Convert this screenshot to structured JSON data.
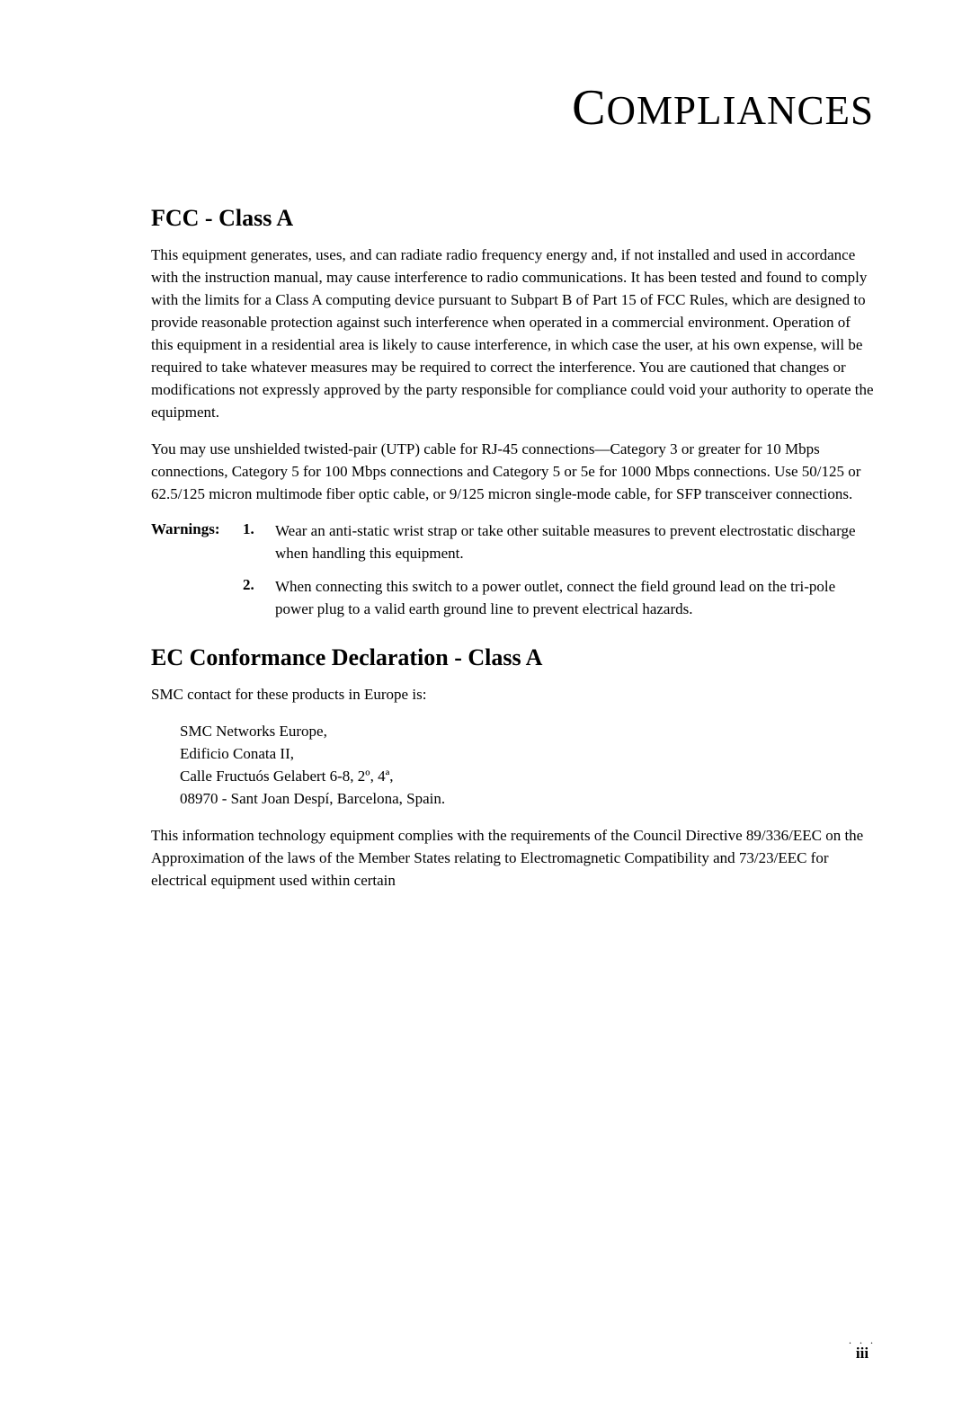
{
  "title": "OMPLIANCES",
  "title_first_letter": "C",
  "section1": {
    "heading": "FCC - Class A",
    "para1": "This equipment generates, uses, and can radiate radio frequency energy and, if not installed and used in accordance with the instruction manual, may cause interference to radio communications. It has been tested and found to comply with the limits for a Class A computing device pursuant to Subpart B of Part 15 of FCC Rules, which are designed to provide reasonable protection against such interference when operated in a commercial environment. Operation of this equipment in a residential area is likely to cause interference, in which case the user, at his own expense, will be required to take whatever measures may be required to correct the interference. You are cautioned that changes or modifications not expressly approved by the party responsible for compliance could void your authority to operate the equipment.",
    "para2": "You may use unshielded twisted-pair (UTP) cable for RJ-45 connections—Category 3 or greater for 10 Mbps connections, Category 5 for 100 Mbps connections and Category 5 or 5e for 1000 Mbps connections. Use 50/125 or 62.5/125 micron multimode fiber optic cable, or 9/125 micron single-mode cable, for SFP transceiver connections."
  },
  "warnings": {
    "label": "Warnings:",
    "items": [
      {
        "num": "1.",
        "text": "Wear an anti-static wrist strap or take other suitable measures to prevent electrostatic discharge when handling this equipment."
      },
      {
        "num": "2.",
        "text": "When connecting this switch to a power outlet, connect the field ground lead on the tri-pole power plug to a valid earth ground line to prevent electrical hazards."
      }
    ]
  },
  "section2": {
    "heading": "EC Conformance Declaration - Class A",
    "intro": "SMC contact for these products in Europe is:",
    "address": [
      "SMC Networks Europe,",
      "Edificio Conata II,",
      "Calle Fructuós Gelabert 6-8, 2º, 4ª,",
      "08970 - Sant Joan Despí, Barcelona, Spain."
    ],
    "para1": "This information technology equipment complies with the requirements of the Council Directive 89/336/EEC on the Approximation of the laws of the Member States relating to Electromagnetic Compatibility and 73/23/EEC for electrical equipment used within certain"
  },
  "page_number": "iii",
  "page_dots": ". . ."
}
